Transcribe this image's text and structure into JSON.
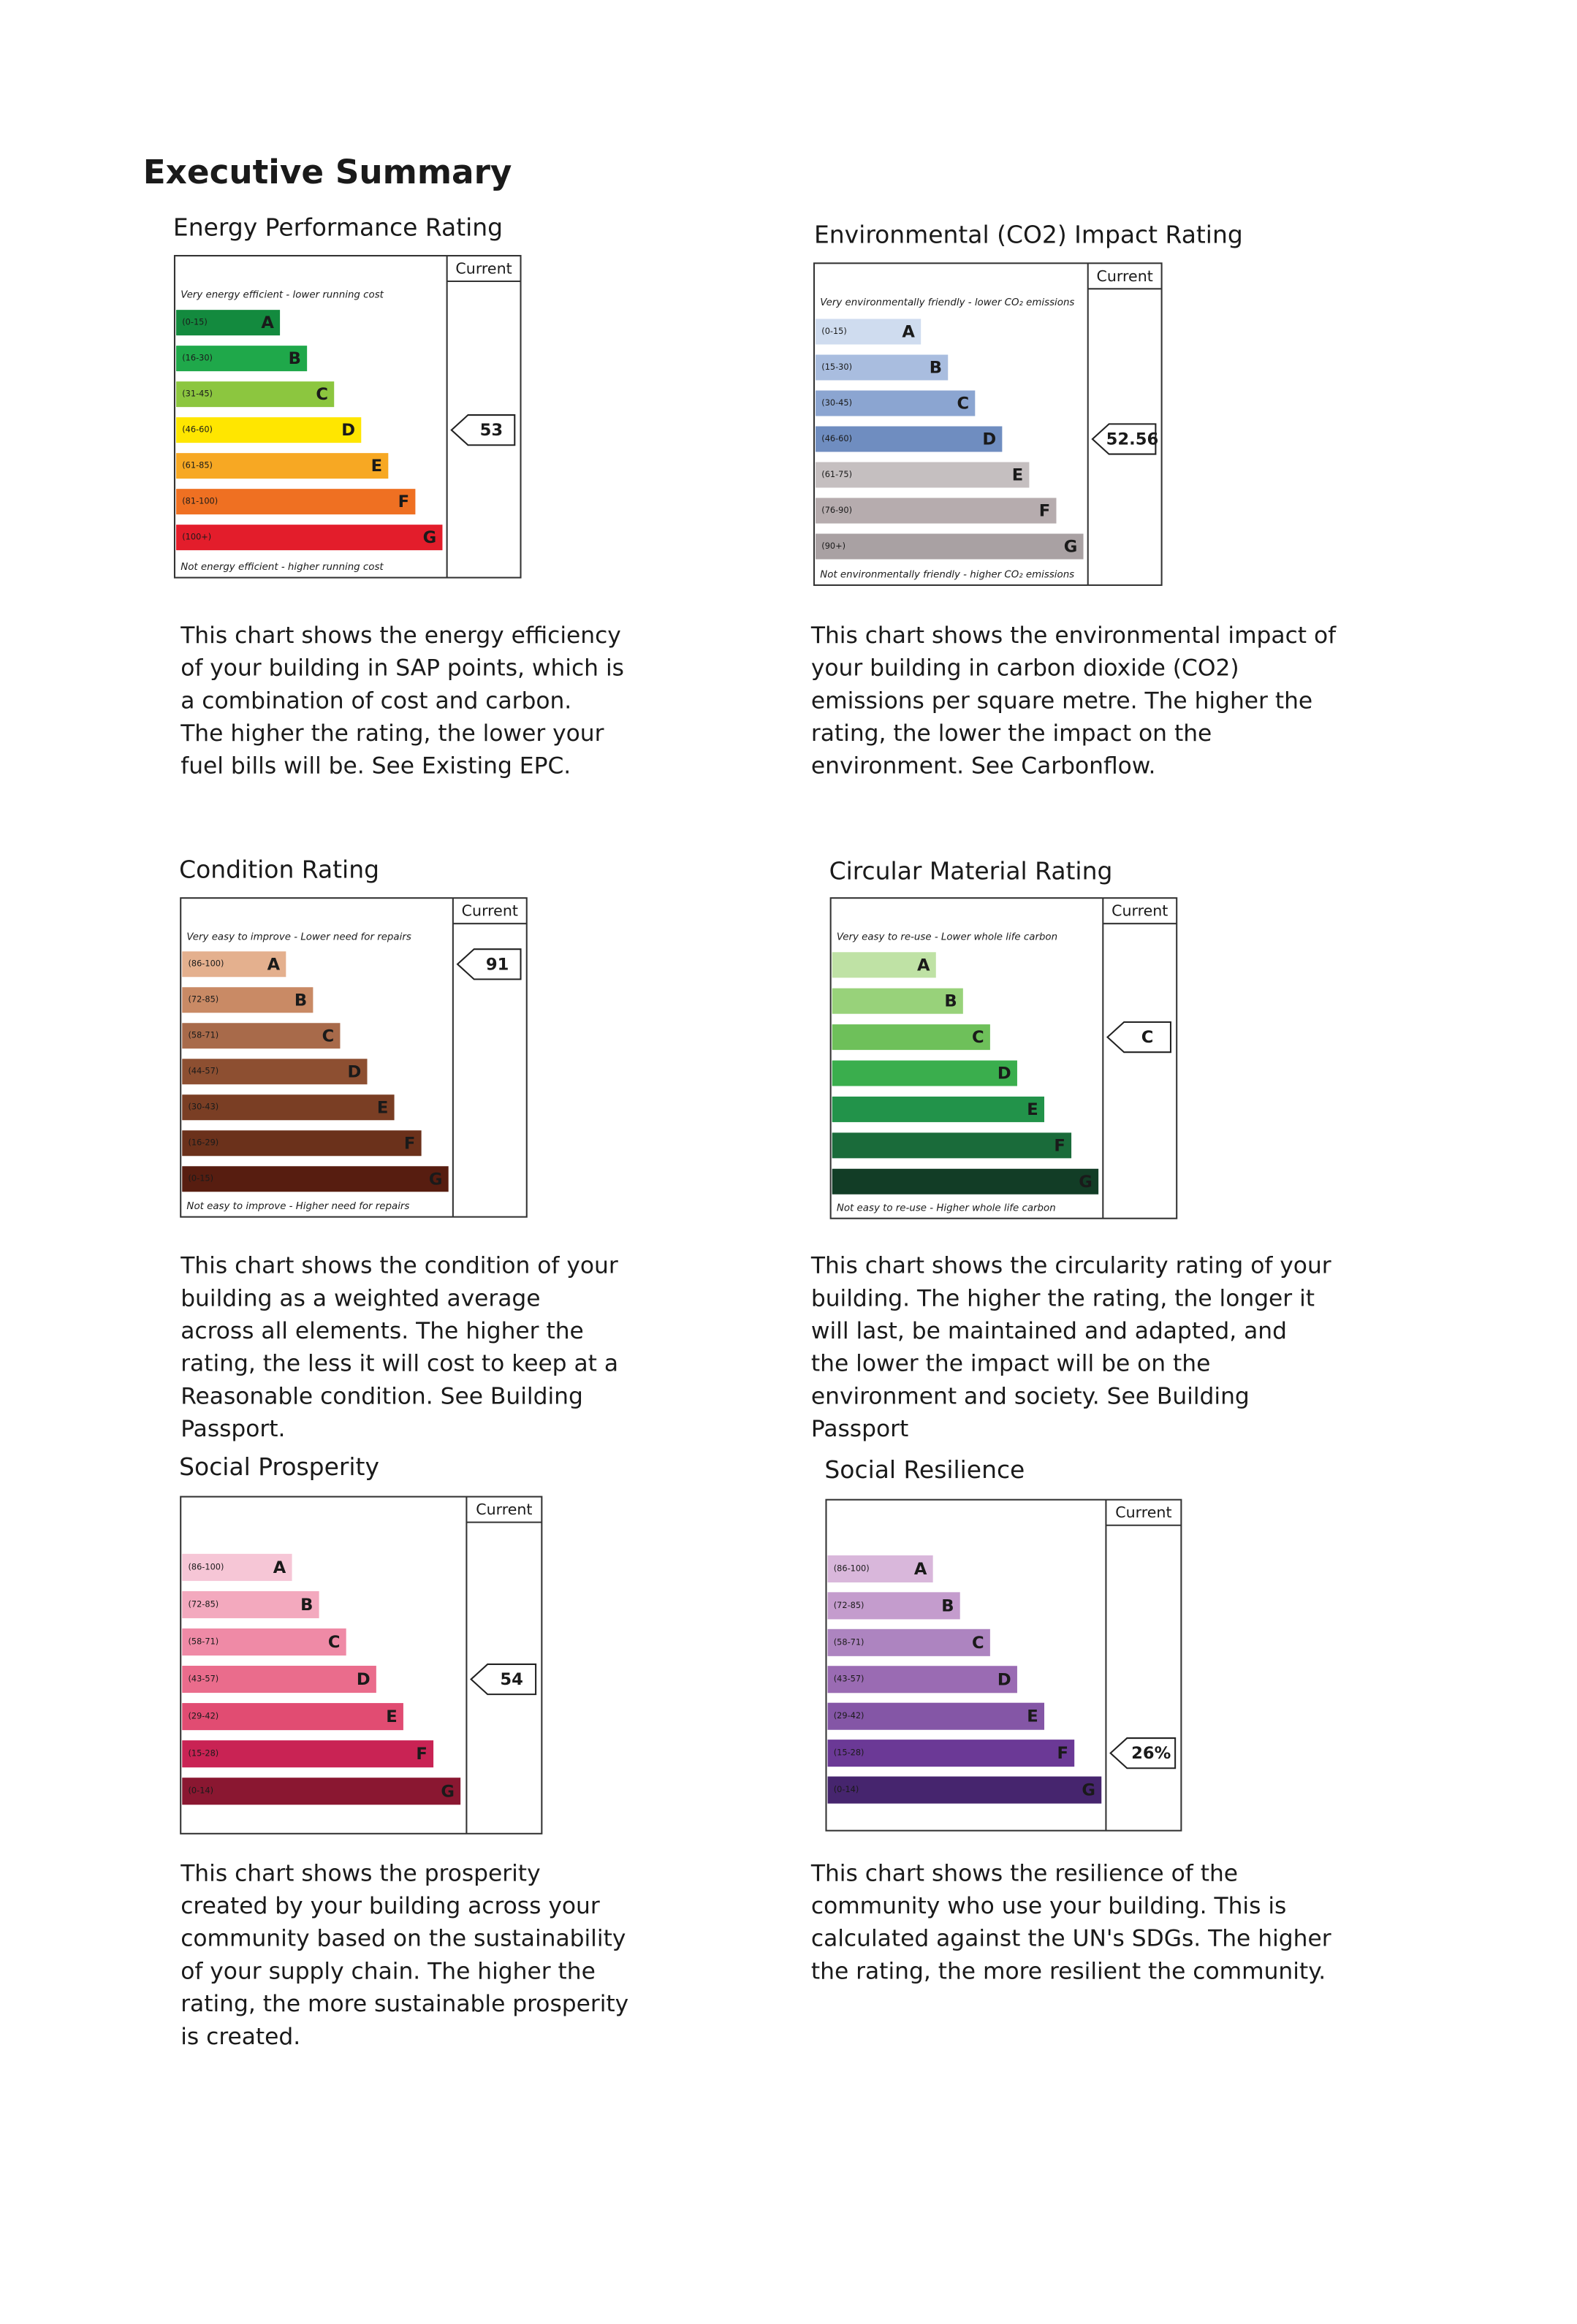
{
  "header": {
    "title": "Executive Summary"
  },
  "panels": [
    {
      "title": "Energy Performance Rating",
      "column_header": "Current",
      "top_note": "Very energy efficient - lower running cost",
      "bottom_note": "Not energy efficient - higher running cost",
      "bands": [
        {
          "range": "(0-15)",
          "letter": "A",
          "color": "#138a3e"
        },
        {
          "range": "(16-30)",
          "letter": "B",
          "color": "#1fa84a"
        },
        {
          "range": "(31-45)",
          "letter": "C",
          "color": "#8cc63f"
        },
        {
          "range": "(46-60)",
          "letter": "D",
          "color": "#ffe600"
        },
        {
          "range": "(61-85)",
          "letter": "E",
          "color": "#f7a823"
        },
        {
          "range": "(81-100)",
          "letter": "F",
          "color": "#ef7022"
        },
        {
          "range": "(100+)",
          "letter": "G",
          "color": "#e31d2b"
        }
      ],
      "current": "53",
      "description": [
        "This chart shows the energy efficiency",
        "of your building in SAP points, which is",
        "a combination of cost and carbon.",
        "The higher the rating, the lower your",
        "fuel bills will be. See Existing EPC."
      ]
    },
    {
      "title": "Environmental (CO2) Impact Rating",
      "column_header": "Current",
      "top_note": "Very environmentally friendly - lower CO₂ emissions",
      "bottom_note": "Not environmentally friendly - higher CO₂ emissions",
      "bands": [
        {
          "range": "(0-15)",
          "letter": "A",
          "color": "#cfdcef"
        },
        {
          "range": "(15-30)",
          "letter": "B",
          "color": "#a9bddf"
        },
        {
          "range": "(30-45)",
          "letter": "C",
          "color": "#8ba5d1"
        },
        {
          "range": "(46-60)",
          "letter": "D",
          "color": "#6f8dc0"
        },
        {
          "range": "(61-75)",
          "letter": "E",
          "color": "#c5bfc0"
        },
        {
          "range": "(76-90)",
          "letter": "F",
          "color": "#b6acae"
        },
        {
          "range": "(90+)",
          "letter": "G",
          "color": "#a9a1a3"
        }
      ],
      "current": "52.56",
      "description": [
        "This chart shows the environmental impact of",
        "your building in carbon dioxide (CO2)",
        "emissions per square metre. The higher the",
        "rating, the lower the impact on the",
        "environment. See Carbonflow."
      ]
    },
    {
      "title": "Condition Rating",
      "column_header": "Current",
      "top_note": "Very easy to improve - Lower need for repairs",
      "bottom_note": "Not easy to improve - Higher need for repairs",
      "bands": [
        {
          "range": "(86-100)",
          "letter": "A",
          "color": "#e4b08e"
        },
        {
          "range": "(72-85)",
          "letter": "B",
          "color": "#c98a65"
        },
        {
          "range": "(58-71)",
          "letter": "C",
          "color": "#a86a4a"
        },
        {
          "range": "(44-57)",
          "letter": "D",
          "color": "#8d4f31"
        },
        {
          "range": "(30-43)",
          "letter": "E",
          "color": "#7a3e24"
        },
        {
          "range": "(16-29)",
          "letter": "F",
          "color": "#6b311b"
        },
        {
          "range": "(0-15)",
          "letter": "G",
          "color": "#571d10"
        }
      ],
      "current": "91",
      "description": [
        "This chart shows the condition of your",
        "building as a weighted average",
        "across all elements. The higher the",
        "rating, the less it will cost to keep at a",
        "Reasonable condition. See Building",
        "Passport."
      ]
    },
    {
      "title": "Circular Material Rating",
      "column_header": "Current",
      "top_note": "Very easy to re-use - Lower whole life carbon",
      "bottom_note": "Not easy to re-use - Higher whole life carbon",
      "bands": [
        {
          "letter": "A",
          "color": "#bfe2a5"
        },
        {
          "letter": "B",
          "color": "#98d27a"
        },
        {
          "letter": "C",
          "color": "#6ec05a"
        },
        {
          "letter": "D",
          "color": "#3aae4d"
        },
        {
          "letter": "E",
          "color": "#22934a"
        },
        {
          "letter": "F",
          "color": "#1a6b3a"
        },
        {
          "letter": "G",
          "color": "#123d26"
        }
      ],
      "current": "C",
      "description": [
        "This chart shows the circularity rating of your",
        "building. The higher the rating, the longer it",
        "will last, be maintained and adapted, and",
        "the lower the impact will be on the",
        "environment and society. See Building",
        "Passport"
      ]
    },
    {
      "title": "Social Prosperity",
      "column_header": "Current",
      "bands": [
        {
          "range": "(86-100)",
          "letter": "A",
          "color": "#f6c6d6"
        },
        {
          "range": "(72-85)",
          "letter": "B",
          "color": "#f3a9be"
        },
        {
          "range": "(58-71)",
          "letter": "C",
          "color": "#ef8aa6"
        },
        {
          "range": "(43-57)",
          "letter": "D",
          "color": "#ea6c8c"
        },
        {
          "range": "(29-42)",
          "letter": "E",
          "color": "#e14c72"
        },
        {
          "range": "(15-28)",
          "letter": "F",
          "color": "#c92354"
        },
        {
          "range": "(0-14)",
          "letter": "G",
          "color": "#8a1731"
        }
      ],
      "current": "54",
      "description": [
        "This chart shows the prosperity",
        "created by your building across your",
        "community based on the sustainability",
        "of your supply chain. The higher the",
        "rating, the more sustainable prosperity",
        "is created."
      ]
    },
    {
      "title": "Social Resilience",
      "column_header": "Current",
      "bands": [
        {
          "range": "(86-100)",
          "letter": "A",
          "color": "#d9b7db"
        },
        {
          "range": "(72-85)",
          "letter": "B",
          "color": "#c49ccd"
        },
        {
          "range": "(58-71)",
          "letter": "C",
          "color": "#ad84c0"
        },
        {
          "range": "(43-57)",
          "letter": "D",
          "color": "#9a6bb3"
        },
        {
          "range": "(29-42)",
          "letter": "E",
          "color": "#8456a6"
        },
        {
          "range": "(15-28)",
          "letter": "F",
          "color": "#6b3996"
        },
        {
          "range": "(0-14)",
          "letter": "G",
          "color": "#46256e"
        }
      ],
      "current": "26%",
      "description": [
        "This chart shows the resilience of the",
        "community who use your building. This is",
        "calculated against the UN's SDGs. The higher",
        "the rating, the more resilient the community."
      ]
    }
  ]
}
